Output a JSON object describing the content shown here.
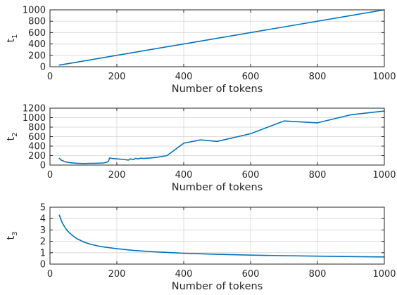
{
  "colors": {
    "series": "#0072bd"
  },
  "chart_data": [
    {
      "type": "line",
      "xlabel": "Number of tokens",
      "ylabel": "t",
      "ylabel_sub": "1",
      "xlim": [
        0,
        1000
      ],
      "ylim": [
        0,
        1000
      ],
      "xticks": [
        0,
        200,
        400,
        600,
        800,
        1000
      ],
      "yticks": [
        0,
        200,
        400,
        600,
        800,
        1000
      ],
      "grid": true,
      "series": [
        {
          "x": [
            28,
            1000
          ],
          "y": [
            28,
            1000
          ]
        }
      ]
    },
    {
      "type": "line",
      "xlabel": "Number of tokens",
      "ylabel": "t",
      "ylabel_sub": "2",
      "xlim": [
        0,
        1000
      ],
      "ylim": [
        0,
        1200
      ],
      "xticks": [
        0,
        200,
        400,
        600,
        800,
        1000
      ],
      "yticks": [
        0,
        200,
        400,
        600,
        800,
        1000,
        1200
      ],
      "grid": true,
      "series": [
        {
          "x": [
            28,
            35,
            45,
            60,
            80,
            100,
            120,
            140,
            160,
            170,
            175,
            178,
            185,
            200,
            220,
            235,
            240,
            250,
            255,
            265,
            270,
            280,
            300,
            320,
            350,
            400,
            450,
            500,
            600,
            700,
            800,
            900,
            1000
          ],
          "y": [
            140,
            100,
            70,
            50,
            38,
            32,
            35,
            38,
            45,
            60,
            80,
            150,
            140,
            130,
            118,
            105,
            130,
            115,
            140,
            130,
            145,
            140,
            150,
            165,
            200,
            460,
            530,
            500,
            660,
            930,
            890,
            1060,
            1140
          ]
        }
      ]
    },
    {
      "type": "line",
      "xlabel": "Number of tokens",
      "ylabel": "t",
      "ylabel_sub": "3",
      "xlim": [
        0,
        1000
      ],
      "ylim": [
        0,
        5
      ],
      "xticks": [
        0,
        200,
        400,
        600,
        800,
        1000
      ],
      "yticks": [
        0,
        1,
        2,
        3,
        4,
        5
      ],
      "grid": true,
      "series": [
        {
          "x": [
            28,
            35,
            40,
            50,
            60,
            70,
            80,
            100,
            120,
            150,
            200,
            250,
            300,
            400,
            500,
            600,
            700,
            800,
            900,
            1000
          ],
          "y": [
            4.3,
            3.75,
            3.45,
            3.0,
            2.7,
            2.45,
            2.25,
            1.95,
            1.75,
            1.55,
            1.35,
            1.2,
            1.1,
            0.95,
            0.86,
            0.79,
            0.74,
            0.7,
            0.66,
            0.63
          ]
        }
      ]
    }
  ]
}
